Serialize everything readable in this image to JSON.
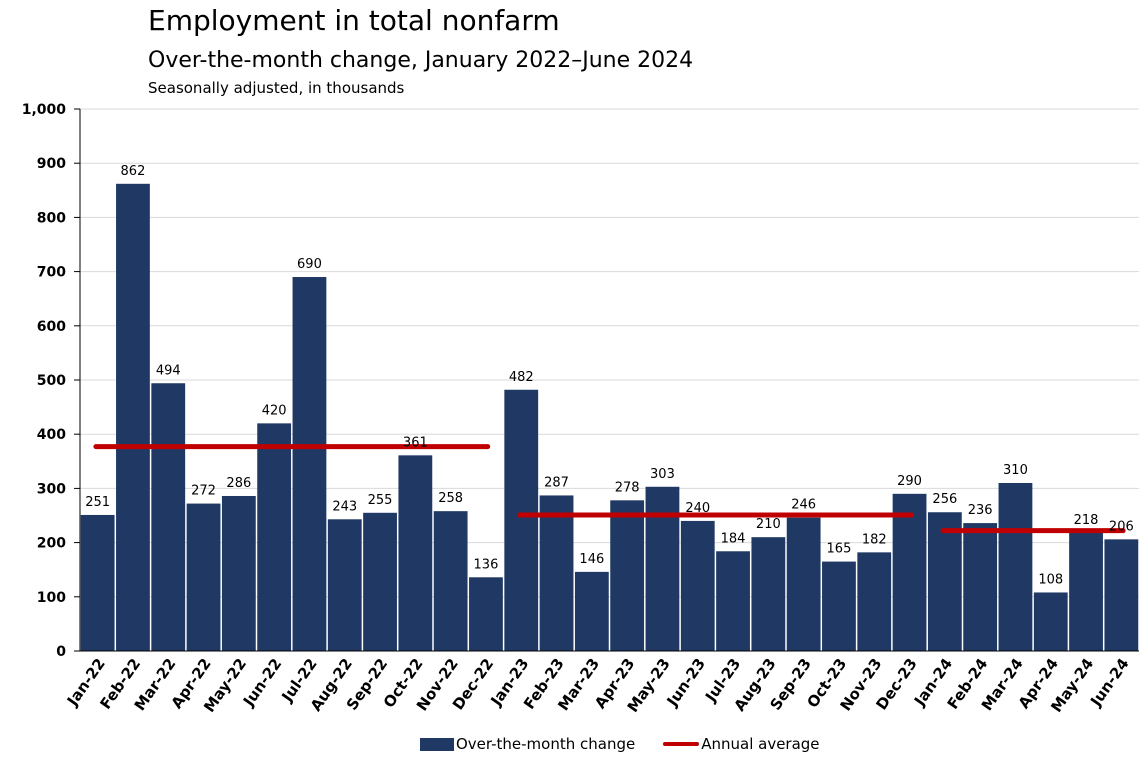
{
  "chart_data": {
    "type": "bar",
    "title": "Employment in total nonfarm",
    "subtitle": "Over-the-month change, January 2022–June 2024",
    "note": "Seasonally adjusted, in thousands",
    "categories": [
      "Jan-22",
      "Feb-22",
      "Mar-22",
      "Apr-22",
      "May-22",
      "Jun-22",
      "Jul-22",
      "Aug-22",
      "Sep-22",
      "Oct-22",
      "Nov-22",
      "Dec-22",
      "Jan-23",
      "Feb-23",
      "Mar-23",
      "Apr-23",
      "May-23",
      "Jun-23",
      "Jul-23",
      "Aug-23",
      "Sep-23",
      "Oct-23",
      "Nov-23",
      "Dec-23",
      "Jan-24",
      "Feb-24",
      "Mar-24",
      "Apr-24",
      "May-24",
      "Jun-24"
    ],
    "series": [
      {
        "name": "Over-the-month change",
        "type": "bar",
        "color": "#203864",
        "values": [
          251,
          862,
          494,
          272,
          286,
          420,
          690,
          243,
          255,
          361,
          258,
          136,
          482,
          287,
          146,
          278,
          303,
          240,
          184,
          210,
          246,
          165,
          182,
          290,
          256,
          236,
          310,
          108,
          218,
          206
        ],
        "labels": [
          "251",
          "862",
          "494",
          "272",
          "286",
          "420",
          "690",
          "243",
          "255",
          "361",
          "258",
          "136",
          "482",
          "287",
          "146",
          "278",
          "303",
          "240",
          "184",
          "210",
          "246",
          "165",
          "182",
          "290",
          "256",
          "236",
          "310",
          "108",
          "218",
          "206"
        ]
      },
      {
        "name": "Annual average",
        "type": "line",
        "color": "#c00000",
        "segments": [
          {
            "from": "Jan-22",
            "to": "Dec-22",
            "value": 377
          },
          {
            "from": "Jan-23",
            "to": "Dec-23",
            "value": 251
          },
          {
            "from": "Jan-24",
            "to": "Jun-24",
            "value": 222
          }
        ]
      }
    ],
    "yticks": [
      "0",
      "100",
      "200",
      "300",
      "400",
      "500",
      "600",
      "700",
      "800",
      "900",
      "1,000"
    ],
    "ylim": [
      0,
      1000
    ],
    "grid": true,
    "legend_position": "bottom"
  }
}
